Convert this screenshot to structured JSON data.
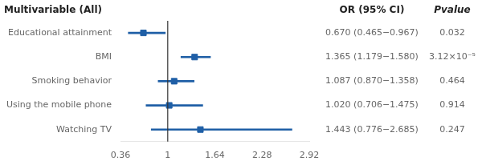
{
  "chart_data": {
    "type": "forest",
    "title": "Multivariable (All)",
    "categories": [
      "Educational attainment",
      "BMI",
      "Smoking behavior",
      "Using the mobile phone",
      "Watching TV"
    ],
    "values": [
      0.67,
      1.365,
      1.087,
      1.02,
      1.443
    ],
    "ci_lo": [
      0.465,
      1.179,
      0.87,
      0.706,
      0.776
    ],
    "ci_hi": [
      0.967,
      1.58,
      1.358,
      1.475,
      2.685
    ],
    "color": "#1F5FA6",
    "vline": 1.0,
    "xlim": [
      0.36,
      2.92
    ],
    "xticks": [
      0.36,
      1,
      1.64,
      2.28,
      2.92
    ],
    "grid": false,
    "columns": [
      {
        "name": "OR (95% CI)",
        "values": [
          "0.670 (0.465−0.967)",
          "1.365 (1.179−1.580)",
          "1.087 (0.870−1.358)",
          "1.020 (0.706−1.475)",
          "1.443 (0.776−2.685)"
        ]
      },
      {
        "name": "Pvalue",
        "values": [
          "0.032",
          "3.12×10⁻⁵",
          "0.464",
          "0.914",
          "0.247"
        ]
      }
    ]
  }
}
